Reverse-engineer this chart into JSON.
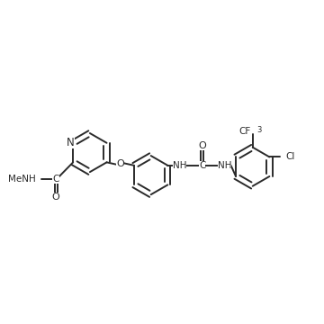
{
  "background_color": "#ffffff",
  "line_color": "#2a2a2a",
  "line_width": 1.4,
  "font_size": 7.5,
  "figsize": [
    3.6,
    3.6
  ],
  "dpi": 100,
  "xlim": [
    0.0,
    10.0
  ],
  "ylim": [
    -1.5,
    4.5
  ]
}
